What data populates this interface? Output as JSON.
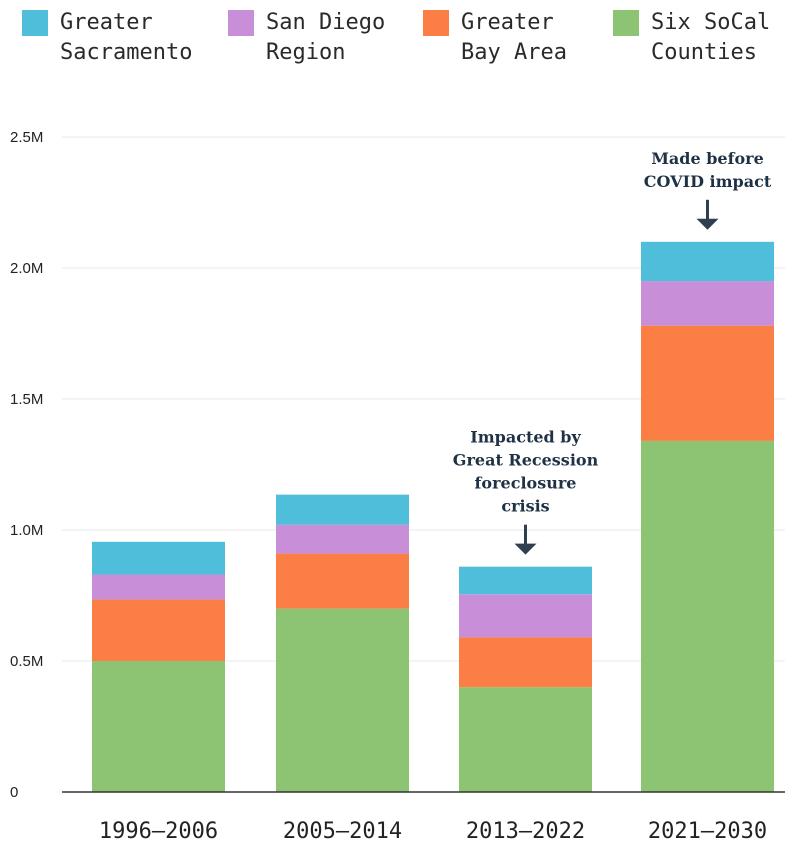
{
  "chart_data": {
    "type": "bar",
    "stacked": true,
    "categories": [
      "1996–2006",
      "2005–2014",
      "2013–2022",
      "2021–2030"
    ],
    "series": [
      {
        "name": "Six SoCal Counties",
        "color": "#8cc474",
        "values": [
          500000,
          700000,
          400000,
          1340000
        ]
      },
      {
        "name": "Greater Bay Area",
        "color": "#fb7e45",
        "values": [
          235000,
          210000,
          190000,
          440000
        ]
      },
      {
        "name": "San Diego Region",
        "color": "#c88fd8",
        "values": [
          95000,
          110000,
          165000,
          170000
        ]
      },
      {
        "name": "Greater Sacramento",
        "color": "#4fbedb",
        "values": [
          125000,
          115000,
          105000,
          150000
        ]
      }
    ],
    "legend": [
      {
        "label": "Greater\nSacramento",
        "color": "#4fbedb"
      },
      {
        "label": "San Diego\nRegion",
        "color": "#c88fd8"
      },
      {
        "label": "Greater\nBay Area",
        "color": "#fb7e45"
      },
      {
        "label": "Six SoCal\nCounties",
        "color": "#8cc474"
      }
    ],
    "y_ticks": [
      {
        "value": 0,
        "label": "0"
      },
      {
        "value": 500000,
        "label": "0.5M"
      },
      {
        "value": 1000000,
        "label": "1.0M"
      },
      {
        "value": 1500000,
        "label": "1.5M"
      },
      {
        "value": 2000000,
        "label": "2.0M"
      },
      {
        "value": 2500000,
        "label": "2.5M"
      }
    ],
    "ylim": [
      0,
      2500000
    ],
    "grid": true,
    "legend_position": "top",
    "annotations": [
      {
        "category_index": 2,
        "lines": [
          "Impacted by",
          "Great Recession",
          "foreclosure",
          "crisis"
        ]
      },
      {
        "category_index": 3,
        "lines": [
          "Made before",
          "COVID impact"
        ]
      }
    ]
  }
}
